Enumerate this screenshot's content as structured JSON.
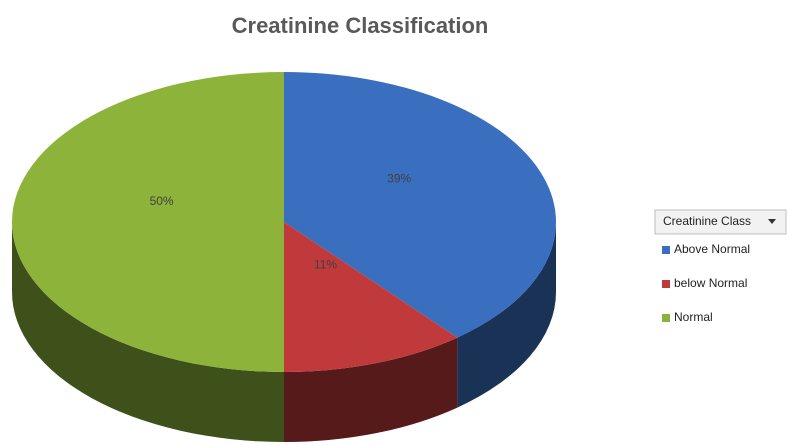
{
  "chart_data": {
    "type": "pie",
    "title": "Creatinine Classification",
    "legend_title": "Creatinine Class",
    "legend": "right",
    "categories": [
      "Above Normal",
      "below Normal",
      "Normal"
    ],
    "values": [
      39,
      11,
      50
    ],
    "value_labels": [
      "39%",
      "11%",
      "50%"
    ],
    "colors": [
      "#3a6fc0",
      "#c0393b",
      "#8db33a"
    ]
  }
}
